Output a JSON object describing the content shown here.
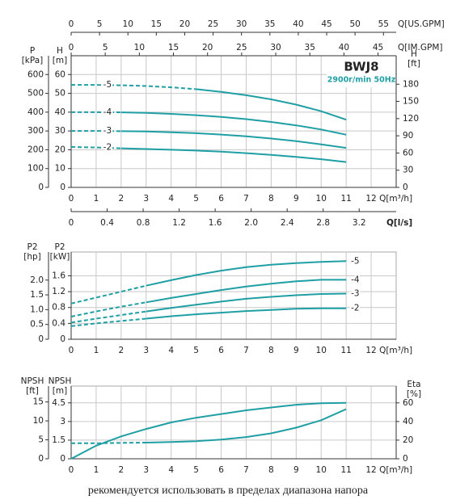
{
  "chart_data": [
    {
      "type": "line",
      "x": [
        0,
        1,
        2,
        3,
        4,
        5,
        6,
        7,
        8,
        9,
        10,
        11
      ],
      "xlim": [
        0,
        13
      ],
      "xticks": [
        0,
        1,
        2,
        3,
        4,
        5,
        6,
        7,
        8,
        9,
        10,
        11,
        12
      ],
      "xlabel": "Q[m³/h]",
      "ylim": [
        0,
        70
      ],
      "yticks": [
        0,
        10,
        20,
        30,
        40,
        50,
        60
      ],
      "ylabel": [
        "H",
        "[m]"
      ],
      "y2lim": [
        0,
        229.7
      ],
      "y2ticks": [
        0,
        30,
        60,
        90,
        120,
        150,
        180
      ],
      "y2label": [
        "H",
        "[ft]"
      ],
      "grid": true,
      "extra_axes": [
        {
          "side": "top",
          "label": "Q[US.GPM]",
          "lim": [
            0,
            57.24
          ],
          "ticks": [
            0,
            5,
            10,
            15,
            20,
            25,
            30,
            35,
            40,
            45,
            50,
            55
          ]
        },
        {
          "side": "top",
          "label": "Q[IM.GPM]",
          "lim": [
            0,
            47.66
          ],
          "ticks": [
            0,
            5,
            10,
            15,
            20,
            25,
            30,
            35,
            40,
            45
          ]
        },
        {
          "side": "bottom",
          "label": "Q[l/s]",
          "lim": [
            0,
            3.611
          ],
          "ticks": [
            0,
            0.4,
            0.8,
            1.2,
            1.6,
            {
              "value": 2,
              "label": "2.0"
            },
            2.4,
            2.8,
            3.2
          ]
        },
        {
          "side": "left",
          "label": [
            "P",
            "[kPa]"
          ],
          "lim": [
            0,
            700
          ],
          "ticks": [
            0,
            100,
            200,
            300,
            400,
            500,
            600
          ]
        }
      ],
      "series_label": "start",
      "annotations": [
        "BWJ8",
        "2900r/min  50Hz"
      ],
      "series": [
        {
          "name": "-5",
          "color": "#1f9fa4",
          "solid_from": 5,
          "values": [
            54.5,
            54.5,
            54.3,
            53.9,
            53.2,
            52.2,
            50.8,
            49,
            46.8,
            44,
            40.5,
            36
          ]
        },
        {
          "name": "-4",
          "color": "#1f9fa4",
          "solid_from": 2,
          "values": [
            40,
            40,
            39.9,
            39.6,
            39.1,
            38.4,
            37.5,
            36.3,
            34.8,
            33,
            30.8,
            28
          ]
        },
        {
          "name": "-3",
          "color": "#1f9fa4",
          "solid_from": 2,
          "values": [
            30,
            30,
            29.9,
            29.7,
            29.3,
            28.8,
            28.1,
            27.2,
            26,
            24.6,
            22.9,
            21
          ]
        },
        {
          "name": "-2",
          "color": "#1f9fa4",
          "solid_from": 2,
          "values": [
            21.5,
            21.2,
            20.8,
            20.4,
            20,
            19.6,
            19,
            18.2,
            17.3,
            16.2,
            15,
            13.5
          ]
        }
      ]
    },
    {
      "type": "line",
      "x": [
        0,
        1,
        2,
        3,
        4,
        5,
        6,
        7,
        8,
        9,
        10,
        11
      ],
      "xlim": [
        0,
        13
      ],
      "xticks": [
        0,
        1,
        2,
        3,
        4,
        5,
        6,
        7,
        8,
        9,
        10,
        11,
        12
      ],
      "xlabel": "Q[m³/h]",
      "ylim": [
        0,
        2.2
      ],
      "yticks": [
        0,
        0.4,
        0.8,
        1.2,
        1.6
      ],
      "ylabel": [
        "P2",
        "[kW]"
      ],
      "grid": true,
      "extra_axes": [
        {
          "side": "left",
          "label": [
            "P2",
            "[hp]"
          ],
          "lim": [
            0,
            2.95
          ],
          "ticks": [
            0,
            0.5,
            {
              "value": 1,
              "label": "1.0"
            },
            1.5,
            {
              "value": 2,
              "label": "2.0"
            }
          ]
        }
      ],
      "series_label": "end",
      "series": [
        {
          "name": "-5",
          "color": "#1f9fa4",
          "solid_from": 3,
          "values": [
            0.9,
            1.05,
            1.2,
            1.35,
            1.49,
            1.62,
            1.73,
            1.82,
            1.88,
            1.92,
            1.95,
            1.97
          ]
        },
        {
          "name": "-4",
          "color": "#1f9fa4",
          "solid_from": 3,
          "values": [
            0.57,
            0.7,
            0.82,
            0.93,
            1.04,
            1.14,
            1.24,
            1.33,
            1.4,
            1.46,
            1.5,
            1.5
          ]
        },
        {
          "name": "-3",
          "color": "#1f9fa4",
          "solid_from": 3,
          "values": [
            0.42,
            0.52,
            0.61,
            0.7,
            0.79,
            0.87,
            0.95,
            1.02,
            1.07,
            1.11,
            1.14,
            1.15
          ]
        },
        {
          "name": "-2",
          "color": "#1f9fa4",
          "solid_from": 3,
          "values": [
            0.33,
            0.4,
            0.46,
            0.52,
            0.58,
            0.63,
            0.67,
            0.71,
            0.74,
            0.77,
            0.78,
            0.78
          ]
        }
      ]
    },
    {
      "type": "line",
      "x": [
        0,
        1,
        2,
        3,
        4,
        5,
        6,
        7,
        8,
        9,
        10,
        11
      ],
      "xlim": [
        0,
        13
      ],
      "xticks": [
        0,
        1,
        2,
        3,
        4,
        5,
        6,
        7,
        8,
        9,
        10,
        11,
        12
      ],
      "xlabel": "Q[m³/h]",
      "ylim": [
        0,
        5.85
      ],
      "yticks": [
        0,
        1.5,
        3,
        4.5
      ],
      "ylabel": [
        "NPSH",
        "[m]"
      ],
      "y2lim": [
        0,
        78
      ],
      "y2ticks": [
        0,
        20,
        40,
        60
      ],
      "y2label": [
        "Eta",
        "[%]"
      ],
      "grid": true,
      "extra_axes": [
        {
          "side": "left",
          "label": [
            "NPSH",
            "[ft]"
          ],
          "lim": [
            0,
            19.19
          ],
          "ticks": [
            0,
            5,
            10,
            15
          ]
        }
      ],
      "series": [
        {
          "color": "#1f9fa4",
          "solid_from": 3,
          "values": [
            1.25,
            1.25,
            1.28,
            1.3,
            1.35,
            1.42,
            1.55,
            1.75,
            2.05,
            2.5,
            3.1,
            4.0
          ]
        },
        {
          "color": "#1f9fa4",
          "solid_from": 0,
          "axis": "y2",
          "values": [
            0,
            14,
            24,
            32,
            39,
            44,
            48,
            52,
            55,
            58,
            59.5,
            60
          ]
        }
      ]
    }
  ],
  "caption": "рекомендуется использовать в пределах диапазона напора"
}
